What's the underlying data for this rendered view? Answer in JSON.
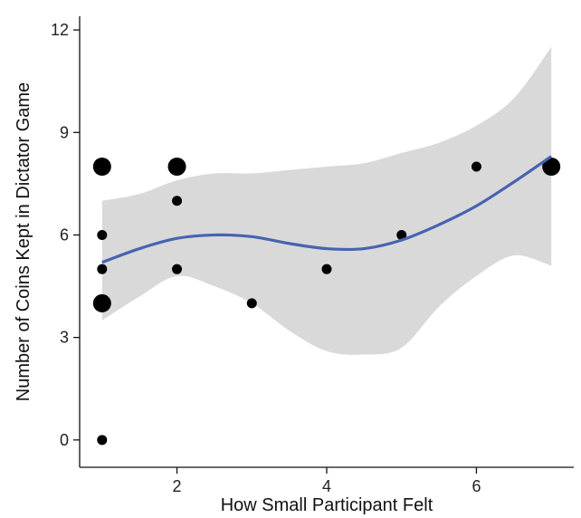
{
  "chart_data": {
    "type": "scatter",
    "title": "",
    "xlabel": "How Small Participant Felt",
    "ylabel": "Number of Coins Kept in Dictator Game",
    "xlim": [
      0.7,
      7.3
    ],
    "ylim": [
      -0.8,
      12.4
    ],
    "x_ticks": [
      2,
      4,
      6
    ],
    "y_ticks": [
      0,
      3,
      6,
      9,
      12
    ],
    "grid": false,
    "legend": "none",
    "points": [
      {
        "x": 1,
        "y": 8,
        "count": 2
      },
      {
        "x": 1,
        "y": 6,
        "count": 1
      },
      {
        "x": 1,
        "y": 5,
        "count": 1
      },
      {
        "x": 1,
        "y": 4,
        "count": 2
      },
      {
        "x": 1,
        "y": 0,
        "count": 1
      },
      {
        "x": 2,
        "y": 8,
        "count": 2
      },
      {
        "x": 2,
        "y": 7,
        "count": 1
      },
      {
        "x": 2,
        "y": 5,
        "count": 1
      },
      {
        "x": 3,
        "y": 4,
        "count": 1
      },
      {
        "x": 4,
        "y": 5,
        "count": 1
      },
      {
        "x": 5,
        "y": 6,
        "count": 1
      },
      {
        "x": 6,
        "y": 8,
        "count": 1
      },
      {
        "x": 7,
        "y": 8,
        "count": 2
      }
    ],
    "smooth": {
      "method": "loess",
      "x": [
        1,
        1.5,
        2,
        2.5,
        3,
        3.5,
        4,
        4.5,
        5,
        5.5,
        6,
        6.5,
        7
      ],
      "y": [
        5.2,
        5.6,
        5.9,
        6.0,
        5.95,
        5.75,
        5.6,
        5.6,
        5.85,
        6.3,
        6.85,
        7.55,
        8.3
      ],
      "lower": [
        3.5,
        4.2,
        4.8,
        4.5,
        4.0,
        3.2,
        2.6,
        2.5,
        2.7,
        3.9,
        4.8,
        5.4,
        5.1
      ],
      "upper": [
        7.0,
        7.2,
        7.6,
        7.8,
        7.8,
        7.9,
        8.0,
        8.1,
        8.4,
        8.7,
        9.2,
        10.0,
        11.5
      ]
    },
    "colors": {
      "points": "#000000",
      "smooth_line": "#4763b0",
      "ribbon": "#d9d9d9"
    }
  }
}
